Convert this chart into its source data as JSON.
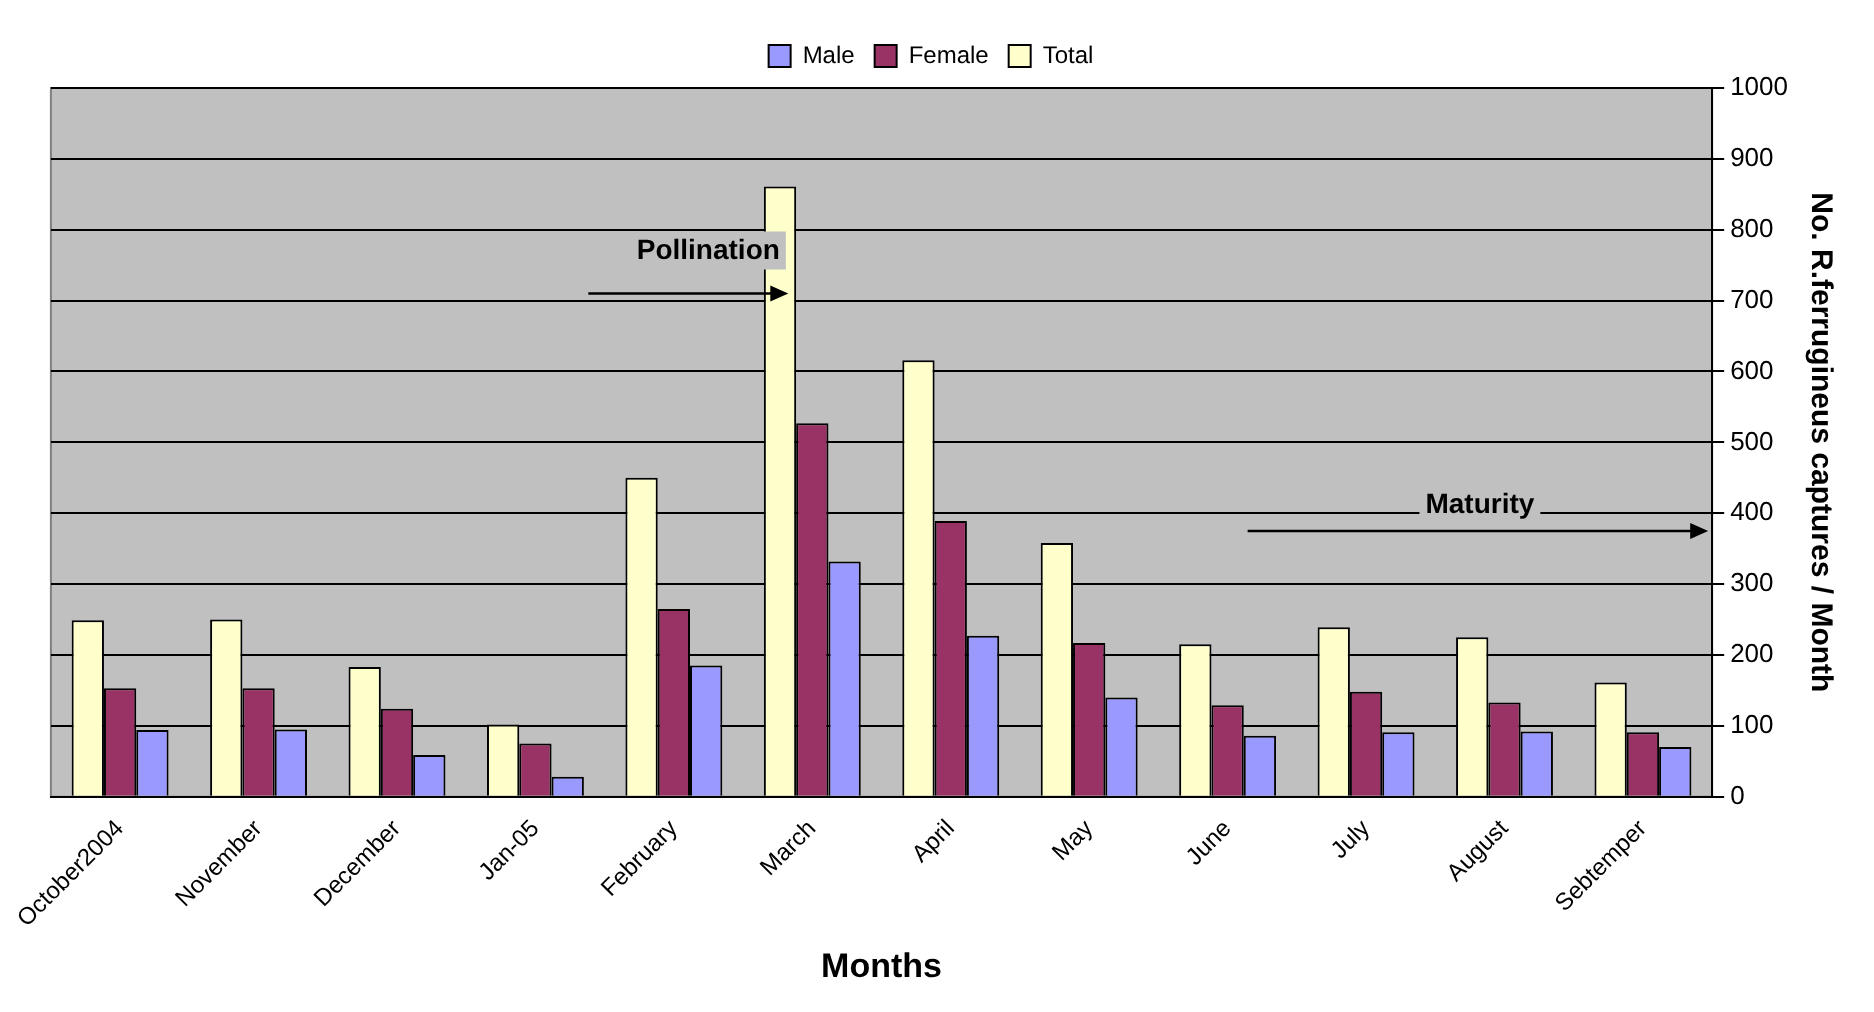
{
  "chart_data": {
    "type": "bar",
    "xlabel": "Months",
    "ylabel": "No. R.ferrugineus captures / Month",
    "categories": [
      "October2004",
      "November",
      "December",
      "Jan-05",
      "February",
      "March",
      "April",
      "May",
      "June",
      "July",
      "August",
      "Sebtemper"
    ],
    "series": [
      {
        "name": "Total",
        "color": "#ffffcc",
        "values": [
          249,
          250,
          183,
          102,
          450,
          861,
          616,
          358,
          215,
          239,
          225,
          161
        ]
      },
      {
        "name": "Female",
        "color": "#993366",
        "values": [
          153,
          153,
          124,
          75,
          265,
          527,
          389,
          217,
          129,
          148,
          133,
          91
        ]
      },
      {
        "name": "Male",
        "color": "#9999ff",
        "values": [
          94,
          95,
          59,
          28,
          185,
          332,
          227,
          140,
          86,
          91,
          92,
          70
        ]
      }
    ],
    "ylim": [
      0,
      1000
    ],
    "yticks": [
      0,
      100,
      200,
      300,
      400,
      500,
      600,
      700,
      800,
      900,
      1000
    ],
    "grid": "y",
    "legend": "top",
    "annotations": [
      {
        "text": "Pollination",
        "x": "March",
        "y": 710
      },
      "Maturity"
    ]
  }
}
